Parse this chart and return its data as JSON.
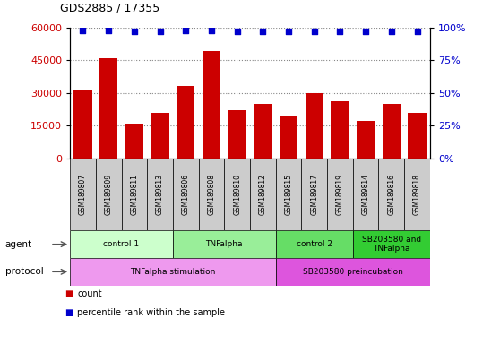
{
  "title": "GDS2885 / 17355",
  "samples": [
    "GSM189807",
    "GSM189809",
    "GSM189811",
    "GSM189813",
    "GSM189806",
    "GSM189808",
    "GSM189810",
    "GSM189812",
    "GSM189815",
    "GSM189817",
    "GSM189819",
    "GSM189814",
    "GSM189816",
    "GSM189818"
  ],
  "counts": [
    31000,
    46000,
    16000,
    21000,
    33000,
    49000,
    22000,
    25000,
    19000,
    30000,
    26000,
    17000,
    25000,
    21000
  ],
  "percentile_ranks": [
    98,
    98,
    97,
    97,
    98,
    98,
    97,
    97,
    97,
    97,
    97,
    97,
    97,
    97
  ],
  "bar_color": "#cc0000",
  "dot_color": "#0000cc",
  "ylim_left": [
    0,
    60000
  ],
  "ylim_right": [
    0,
    100
  ],
  "yticks_left": [
    0,
    15000,
    30000,
    45000,
    60000
  ],
  "yticks_right": [
    0,
    25,
    50,
    75,
    100
  ],
  "agent_groups": [
    {
      "label": "control 1",
      "start": 0,
      "end": 4,
      "color": "#ccffcc"
    },
    {
      "label": "TNFalpha",
      "start": 4,
      "end": 8,
      "color": "#99ee99"
    },
    {
      "label": "control 2",
      "start": 8,
      "end": 11,
      "color": "#66dd66"
    },
    {
      "label": "SB203580 and\nTNFalpha",
      "start": 11,
      "end": 14,
      "color": "#33cc33"
    }
  ],
  "protocol_groups": [
    {
      "label": "TNFalpha stimulation",
      "start": 0,
      "end": 8,
      "color": "#ee99ee"
    },
    {
      "label": "SB203580 preincubation",
      "start": 8,
      "end": 14,
      "color": "#dd55dd"
    }
  ],
  "bar_color_label": "count",
  "dot_color_label": "percentile rank within the sample",
  "agent_label": "agent",
  "protocol_label": "protocol",
  "grid_color": "#888888",
  "tick_bg_color": "#cccccc",
  "left_tick_color": "#cc0000",
  "right_tick_color": "#0000cc"
}
